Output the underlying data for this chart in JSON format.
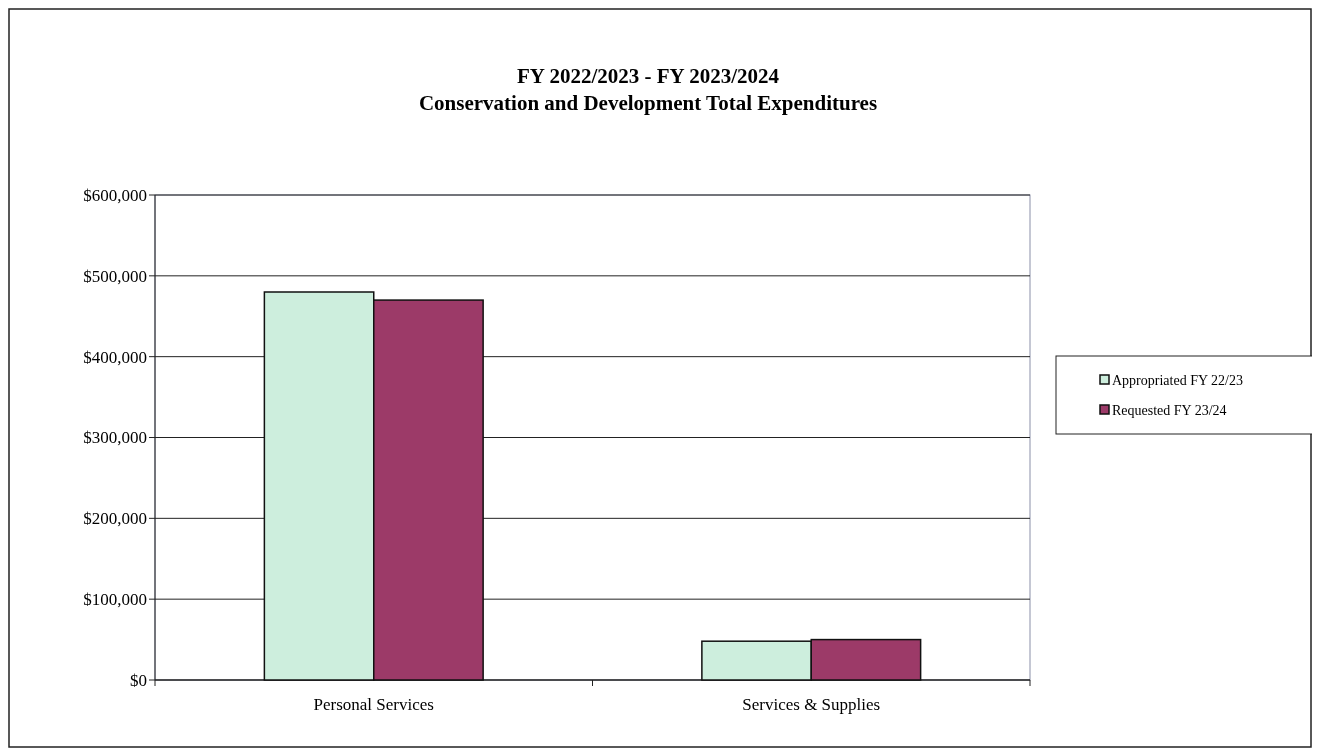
{
  "chart_data": {
    "type": "bar",
    "title": "FY 2022/2023 - FY 2023/2024",
    "subtitle": "Conservation and Development Total Expenditures",
    "categories": [
      "Personal Services",
      "Services & Supplies"
    ],
    "series": [
      {
        "name": "Appropriated FY 22/23",
        "color": "#cdeedd",
        "values": [
          480000,
          48000
        ]
      },
      {
        "name": "Requested FY 23/24",
        "color": "#9c3a68",
        "values": [
          470000,
          50000
        ]
      }
    ],
    "ylim": [
      0,
      600000
    ],
    "yticks": [
      {
        "value": 0,
        "label": "$0"
      },
      {
        "value": 100000,
        "label": "$100,000"
      },
      {
        "value": 200000,
        "label": "$200,000"
      },
      {
        "value": 300000,
        "label": "$300,000"
      },
      {
        "value": 400000,
        "label": "$400,000"
      },
      {
        "value": 500000,
        "label": "$500,000"
      },
      {
        "value": 600000,
        "label": "$600,000"
      }
    ],
    "grid": "y",
    "legend": "right"
  }
}
